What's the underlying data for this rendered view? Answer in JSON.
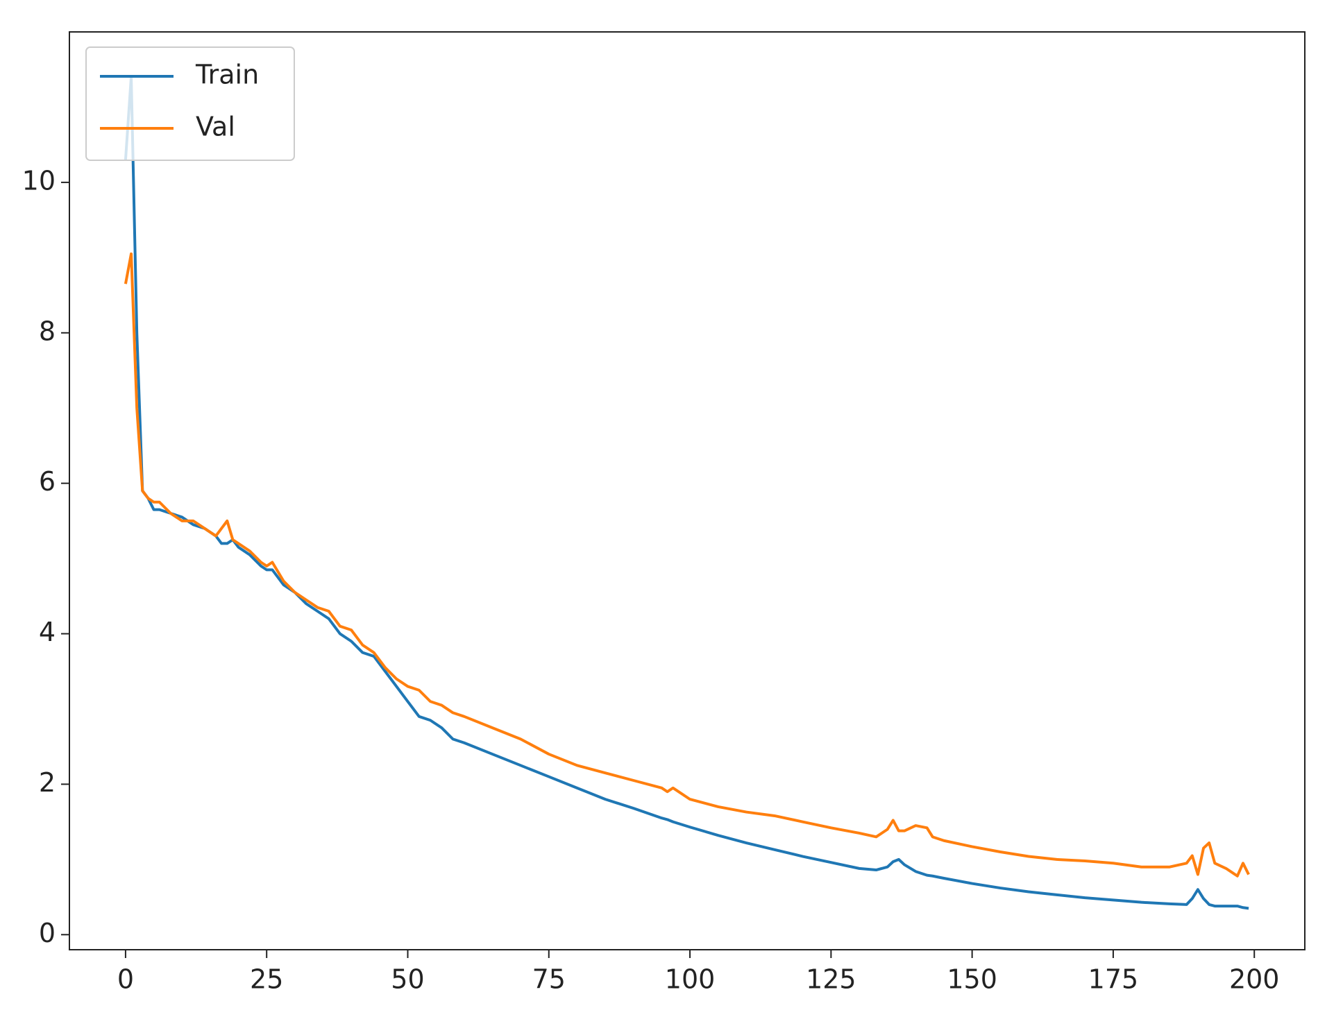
{
  "chart_data": {
    "type": "line",
    "x": [
      0,
      1,
      2,
      3,
      4,
      5,
      6,
      8,
      10,
      12,
      14,
      16,
      17,
      18,
      19,
      20,
      22,
      24,
      25,
      26,
      28,
      30,
      32,
      34,
      36,
      38,
      40,
      42,
      44,
      46,
      48,
      50,
      52,
      54,
      56,
      58,
      60,
      65,
      70,
      75,
      80,
      85,
      90,
      95,
      96,
      97,
      100,
      105,
      110,
      115,
      120,
      125,
      130,
      133,
      135,
      136,
      137,
      138,
      140,
      142,
      143,
      145,
      150,
      155,
      160,
      165,
      170,
      175,
      180,
      185,
      188,
      189,
      190,
      191,
      192,
      193,
      195,
      197,
      198,
      199
    ],
    "series": [
      {
        "name": "Train",
        "color": "#1f77b4",
        "values": [
          10.3,
          11.4,
          8.0,
          5.9,
          5.8,
          5.65,
          5.65,
          5.6,
          5.55,
          5.45,
          5.4,
          5.3,
          5.2,
          5.2,
          5.25,
          5.15,
          5.05,
          4.9,
          4.85,
          4.85,
          4.65,
          4.55,
          4.4,
          4.3,
          4.2,
          4.0,
          3.9,
          3.75,
          3.7,
          3.5,
          3.3,
          3.1,
          2.9,
          2.85,
          2.75,
          2.6,
          2.55,
          2.4,
          2.25,
          2.1,
          1.95,
          1.8,
          1.68,
          1.55,
          1.53,
          1.5,
          1.43,
          1.32,
          1.22,
          1.13,
          1.04,
          0.96,
          0.88,
          0.86,
          0.9,
          0.97,
          1.0,
          0.93,
          0.84,
          0.79,
          0.78,
          0.75,
          0.68,
          0.62,
          0.57,
          0.53,
          0.49,
          0.46,
          0.43,
          0.41,
          0.4,
          0.48,
          0.6,
          0.48,
          0.4,
          0.38,
          0.38,
          0.38,
          0.36,
          0.35
        ]
      },
      {
        "name": "Val",
        "color": "#ff7f0e",
        "values": [
          8.65,
          9.05,
          7.0,
          5.9,
          5.8,
          5.75,
          5.75,
          5.6,
          5.5,
          5.5,
          5.4,
          5.3,
          5.4,
          5.5,
          5.25,
          5.2,
          5.1,
          4.95,
          4.9,
          4.95,
          4.7,
          4.55,
          4.45,
          4.35,
          4.3,
          4.1,
          4.05,
          3.85,
          3.75,
          3.55,
          3.4,
          3.3,
          3.25,
          3.1,
          3.05,
          2.95,
          2.9,
          2.75,
          2.6,
          2.4,
          2.25,
          2.15,
          2.05,
          1.95,
          1.9,
          1.95,
          1.8,
          1.7,
          1.63,
          1.58,
          1.5,
          1.42,
          1.35,
          1.3,
          1.4,
          1.52,
          1.38,
          1.38,
          1.45,
          1.42,
          1.3,
          1.25,
          1.17,
          1.1,
          1.04,
          1.0,
          0.98,
          0.95,
          0.9,
          0.9,
          0.95,
          1.05,
          0.8,
          1.15,
          1.22,
          0.95,
          0.88,
          0.78,
          0.95,
          0.8
        ]
      }
    ],
    "xlim": [
      -9.95,
      208.95
    ],
    "xticks": [
      0,
      25,
      50,
      75,
      100,
      125,
      150,
      175,
      200
    ],
    "ylim": [
      -0.2,
      12.0
    ],
    "yticks": [
      0,
      2,
      4,
      6,
      8,
      10
    ],
    "grid": false,
    "legend": "upper-left"
  }
}
